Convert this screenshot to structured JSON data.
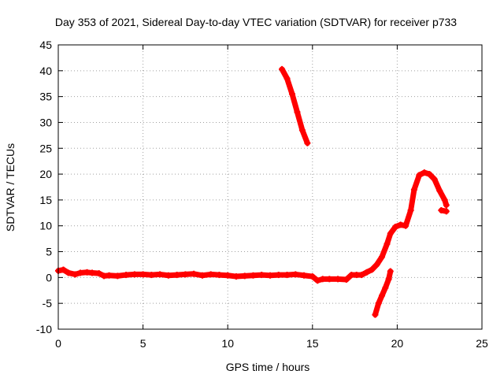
{
  "chart_data": {
    "type": "scatter",
    "title": "Day 353 of 2021, Sidereal Day-to-day VTEC variation (SDTVAR) for receiver p733",
    "xlabel": "GPS time / hours",
    "ylabel": "SDTVAR / TECUs",
    "xlim": [
      0,
      25
    ],
    "ylim": [
      -10,
      45
    ],
    "xticks": [
      0,
      5,
      10,
      15,
      20,
      25
    ],
    "yticks": [
      -10,
      -5,
      0,
      5,
      10,
      15,
      20,
      25,
      30,
      35,
      40,
      45
    ],
    "grid": true,
    "marker_color": "#ff0000",
    "series": [
      {
        "values": [
          [
            0.0,
            1.3
          ],
          [
            0.3,
            1.5
          ],
          [
            0.6,
            0.9
          ],
          [
            1.0,
            0.6
          ],
          [
            1.3,
            0.9
          ],
          [
            1.7,
            1.0
          ],
          [
            2.0,
            0.9
          ],
          [
            2.4,
            0.8
          ],
          [
            2.7,
            0.3
          ],
          [
            3.0,
            0.4
          ],
          [
            3.5,
            0.3
          ],
          [
            4.0,
            0.5
          ],
          [
            4.5,
            0.6
          ],
          [
            5.0,
            0.6
          ],
          [
            5.5,
            0.5
          ],
          [
            6.0,
            0.6
          ],
          [
            6.5,
            0.4
          ],
          [
            7.0,
            0.5
          ],
          [
            7.5,
            0.6
          ],
          [
            8.0,
            0.7
          ],
          [
            8.5,
            0.4
          ],
          [
            9.0,
            0.6
          ],
          [
            9.5,
            0.5
          ],
          [
            10.0,
            0.4
          ],
          [
            10.5,
            0.2
          ],
          [
            11.0,
            0.3
          ],
          [
            11.5,
            0.4
          ],
          [
            12.0,
            0.5
          ],
          [
            12.5,
            0.4
          ],
          [
            13.0,
            0.5
          ],
          [
            13.5,
            0.5
          ],
          [
            14.0,
            0.6
          ],
          [
            14.5,
            0.4
          ],
          [
            15.0,
            0.2
          ],
          [
            15.3,
            -0.6
          ],
          [
            15.6,
            -0.3
          ],
          [
            16.0,
            -0.3
          ],
          [
            16.5,
            -0.3
          ],
          [
            17.0,
            -0.4
          ],
          [
            17.3,
            0.5
          ],
          [
            17.6,
            0.5
          ],
          [
            17.9,
            0.5
          ],
          [
            18.2,
            1.0
          ],
          [
            18.5,
            1.5
          ],
          [
            18.8,
            2.5
          ],
          [
            19.1,
            4.0
          ],
          [
            19.4,
            6.5
          ],
          [
            19.6,
            8.5
          ],
          [
            19.9,
            9.8
          ],
          [
            20.2,
            10.2
          ],
          [
            20.5,
            10.0
          ],
          [
            20.8,
            13.0
          ],
          [
            21.0,
            17.0
          ],
          [
            21.3,
            19.8
          ],
          [
            21.6,
            20.3
          ],
          [
            21.9,
            20.0
          ],
          [
            22.2,
            19.0
          ],
          [
            22.5,
            16.8
          ],
          [
            22.8,
            15.0
          ],
          [
            22.9,
            14.0
          ]
        ]
      },
      {
        "values": [
          [
            13.2,
            40.3
          ],
          [
            13.5,
            38.5
          ],
          [
            13.8,
            35.5
          ],
          [
            14.1,
            32.0
          ],
          [
            14.4,
            28.5
          ],
          [
            14.7,
            26.0
          ]
        ]
      },
      {
        "values": [
          [
            18.7,
            -7.2
          ],
          [
            18.9,
            -5.0
          ],
          [
            19.1,
            -3.5
          ],
          [
            19.3,
            -2.0
          ],
          [
            19.5,
            -0.3
          ],
          [
            19.6,
            1.2
          ]
        ]
      },
      {
        "values": [
          [
            22.6,
            13.0
          ],
          [
            22.9,
            12.8
          ]
        ]
      }
    ]
  }
}
